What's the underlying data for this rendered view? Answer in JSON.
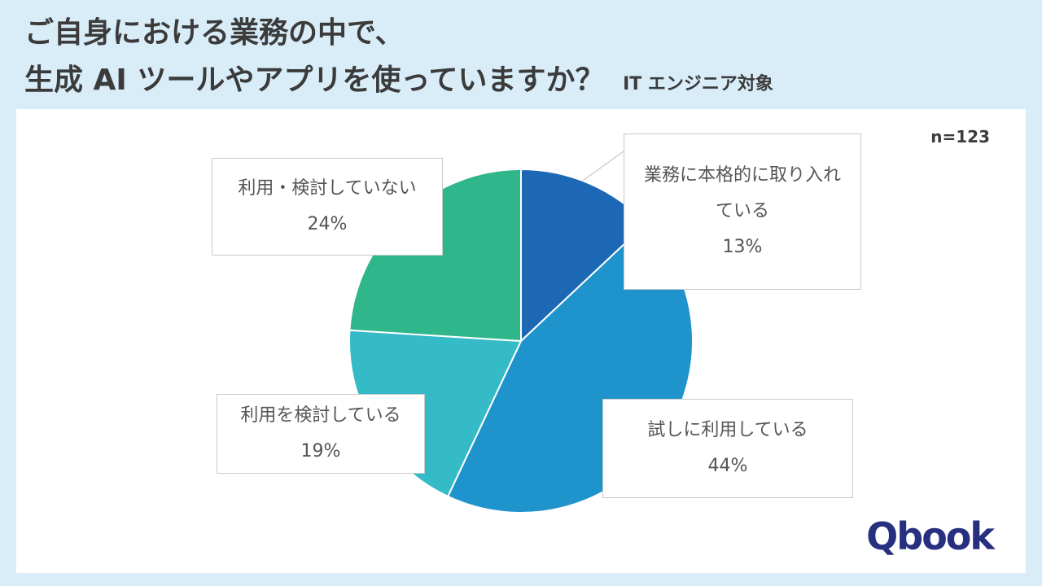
{
  "title": {
    "line1": "ご自身における業務の中で、",
    "line2": "生成 AI ツールやアプリを使っていますか？",
    "suffix": "IT エンジニア対象"
  },
  "sample_size": "n=123",
  "logo": "Qbook",
  "chart_data": {
    "type": "pie",
    "start_angle_deg": 0,
    "direction": "clockwise",
    "slices": [
      {
        "label": "業務に本格的に取り入れている",
        "value": 13,
        "value_label": "13%",
        "color": "#1d68b4"
      },
      {
        "label": "試しに利用している",
        "value": 44,
        "value_label": "44%",
        "color": "#1f93cb"
      },
      {
        "label": "利用を検討している",
        "value": 19,
        "value_label": "19%",
        "color": "#35bac7"
      },
      {
        "label": "利用・検討していない",
        "value": 24,
        "value_label": "24%",
        "color": "#2fb68a"
      }
    ]
  },
  "colors": {
    "background": "#d9edf9",
    "panel": "#ffffff",
    "title": "#3b3b3b",
    "logo": "#273080"
  }
}
